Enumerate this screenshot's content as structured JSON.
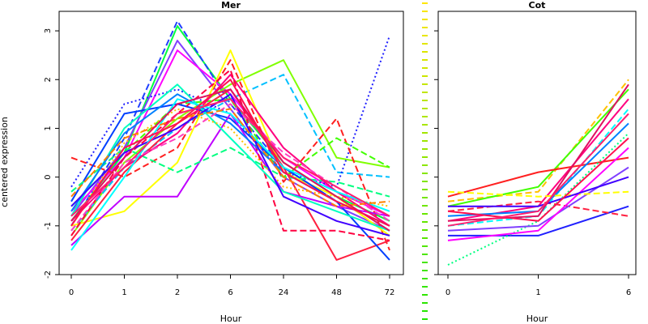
{
  "chart_data": [
    {
      "type": "line",
      "title": "Mer",
      "xlabel": "Hour",
      "ylabel": "centered expression",
      "categories": [
        "0",
        "1",
        "2",
        "6",
        "24",
        "48",
        "72"
      ],
      "yticks": [
        -2,
        -1,
        0,
        1,
        2,
        3
      ],
      "ylim": [
        -2.0,
        3.4
      ],
      "grid": false,
      "legend": "none",
      "series": [
        {
          "values": [
            -0.9,
            0.5,
            3.1,
            1.6,
            0.3,
            -0.4,
            -0.9
          ],
          "color": "#00ff40",
          "dash": "solid"
        },
        {
          "values": [
            -1.0,
            0.8,
            3.2,
            1.5,
            0.2,
            -0.5,
            -1.0
          ],
          "color": "#2040ff",
          "dash": "dashed"
        },
        {
          "values": [
            -0.8,
            0.6,
            2.8,
            1.4,
            0.0,
            -0.6,
            -1.1
          ],
          "color": "#8040ff",
          "dash": "solid"
        },
        {
          "values": [
            -0.7,
            0.4,
            2.6,
            1.7,
            0.4,
            -0.3,
            -0.8
          ],
          "color": "#ff00ff",
          "dash": "solid"
        },
        {
          "values": [
            -1.2,
            0.3,
            1.2,
            1.9,
            2.4,
            0.4,
            0.2
          ],
          "color": "#80ff00",
          "dash": "solid"
        },
        {
          "values": [
            -1.1,
            0.2,
            1.0,
            1.6,
            2.1,
            0.1,
            0.0
          ],
          "color": "#00c0ff",
          "dash": "dashed"
        },
        {
          "values": [
            -0.2,
            1.5,
            1.8,
            1.3,
            0.1,
            -0.2,
            2.9
          ],
          "color": "#2020ff",
          "dash": "dotted"
        },
        {
          "values": [
            0.4,
            0.0,
            0.6,
            2.4,
            -0.1,
            1.2,
            -1.5
          ],
          "color": "#ff2020",
          "dash": "dashed"
        },
        {
          "values": [
            -1.0,
            -0.7,
            0.3,
            2.6,
            0.1,
            -0.4,
            -1.2
          ],
          "color": "#ffff00",
          "dash": "solid"
        },
        {
          "values": [
            -1.3,
            0.1,
            1.1,
            1.8,
            0.2,
            -1.7,
            -1.3
          ],
          "color": "#ff2040",
          "dash": "solid"
        },
        {
          "values": [
            -0.6,
            0.5,
            1.5,
            1.6,
            0.0,
            0.8,
            0.2
          ],
          "color": "#40ff00",
          "dash": "dashed"
        },
        {
          "values": [
            -0.5,
            1.3,
            1.5,
            1.2,
            0.2,
            -0.5,
            -1.7
          ],
          "color": "#0040ff",
          "dash": "solid"
        },
        {
          "values": [
            -1.4,
            -0.4,
            -0.4,
            1.3,
            -0.3,
            -0.6,
            -0.8
          ],
          "color": "#c000ff",
          "dash": "solid"
        },
        {
          "values": [
            -0.3,
            0.6,
            0.1,
            0.6,
            0.0,
            -0.1,
            -0.4
          ],
          "color": "#00ff80",
          "dash": "dashed"
        },
        {
          "values": [
            -0.9,
            0.2,
            0.9,
            2.1,
            0.6,
            -0.3,
            -1.0
          ],
          "color": "#ff0080",
          "dash": "solid"
        },
        {
          "values": [
            -1.2,
            0.4,
            1.3,
            2.2,
            -1.1,
            -1.1,
            -1.3
          ],
          "color": "#ff0040",
          "dash": "dashed"
        },
        {
          "values": [
            -0.8,
            1.0,
            1.9,
            0.8,
            -0.3,
            -0.7,
            -1.1
          ],
          "color": "#00ffc0",
          "dash": "solid"
        },
        {
          "values": [
            -1.0,
            0.7,
            1.4,
            1.0,
            -0.2,
            -0.4,
            -0.6
          ],
          "color": "#ffc000",
          "dash": "dotted"
        },
        {
          "values": [
            -0.7,
            0.9,
            1.7,
            1.1,
            0.1,
            -0.5,
            -1.0
          ],
          "color": "#0080ff",
          "dash": "solid"
        },
        {
          "values": [
            -1.1,
            0.3,
            0.8,
            1.5,
            0.5,
            -0.2,
            -0.9
          ],
          "color": "#ff40c0",
          "dash": "dashed"
        },
        {
          "values": [
            -0.6,
            0.5,
            1.0,
            1.7,
            -0.4,
            -0.9,
            -1.2
          ],
          "color": "#4000ff",
          "dash": "solid"
        },
        {
          "values": [
            -1.5,
            0.0,
            1.6,
            1.3,
            0.2,
            -0.3,
            -0.7
          ],
          "color": "#00ffff",
          "dash": "solid"
        },
        {
          "values": [
            -0.4,
            0.8,
            1.2,
            1.4,
            0.0,
            -0.6,
            -0.5
          ],
          "color": "#ff8000",
          "dash": "dashed"
        },
        {
          "values": [
            -0.9,
            0.4,
            1.5,
            1.8,
            0.3,
            -0.4,
            -1.1
          ],
          "color": "#e01060",
          "dash": "solid"
        },
        {
          "values": [
            -1.0,
            0.6,
            1.1,
            2.0,
            0.1,
            -0.5,
            -1.0
          ],
          "color": "#ff1050",
          "dash": "solid"
        },
        {
          "values": [
            -0.8,
            0.2,
            1.3,
            1.6,
            0.4,
            -0.2,
            -0.8
          ],
          "color": "#ff2070",
          "dash": "solid"
        }
      ]
    },
    {
      "type": "line",
      "title": "Cot",
      "xlabel": "Hour",
      "ylabel": "",
      "categories": [
        "0",
        "1",
        "6"
      ],
      "yticks": [
        -2,
        -1,
        0,
        1,
        2,
        3
      ],
      "ylim": [
        -2.0,
        3.4
      ],
      "grid": false,
      "legend": "none",
      "series": [
        {
          "values": [
            -0.5,
            -0.3,
            2.0
          ],
          "color": "#ffc000",
          "dash": "dashed"
        },
        {
          "values": [
            -0.6,
            -0.2,
            1.8
          ],
          "color": "#40ff00",
          "dash": "solid"
        },
        {
          "values": [
            -0.9,
            -0.6,
            1.6
          ],
          "color": "#ff0080",
          "dash": "solid"
        },
        {
          "values": [
            -1.0,
            -0.8,
            1.4
          ],
          "color": "#00ffff",
          "dash": "dashed"
        },
        {
          "values": [
            -0.4,
            0.1,
            0.4
          ],
          "color": "#ff2020",
          "dash": "solid"
        },
        {
          "values": [
            -1.2,
            -1.2,
            -0.6
          ],
          "color": "#2020ff",
          "dash": "solid"
        },
        {
          "values": [
            -1.8,
            -0.9,
            0.9
          ],
          "color": "#00ff80",
          "dash": "dotted"
        },
        {
          "values": [
            -0.7,
            -0.5,
            -0.8
          ],
          "color": "#ff2040",
          "dash": "dashed"
        },
        {
          "values": [
            -1.1,
            -1.0,
            0.2
          ],
          "color": "#8040ff",
          "dash": "solid"
        },
        {
          "values": [
            -0.8,
            -0.7,
            1.1
          ],
          "color": "#0080ff",
          "dash": "solid"
        },
        {
          "values": [
            -0.3,
            -0.4,
            -0.3
          ],
          "color": "#ffff00",
          "dash": "dashed"
        },
        {
          "values": [
            -1.3,
            -1.1,
            0.6
          ],
          "color": "#ff00ff",
          "dash": "solid"
        },
        {
          "values": [
            -0.6,
            -0.6,
            0.0
          ],
          "color": "#4000ff",
          "dash": "solid"
        },
        {
          "values": [
            -0.9,
            -0.8,
            1.9
          ],
          "color": "#e01060",
          "dash": "solid"
        },
        {
          "values": [
            -0.7,
            -0.9,
            0.8
          ],
          "color": "#ff1050",
          "dash": "solid"
        },
        {
          "values": [
            -1.0,
            -0.7,
            1.3
          ],
          "color": "#ff2070",
          "dash": "solid"
        }
      ]
    }
  ]
}
